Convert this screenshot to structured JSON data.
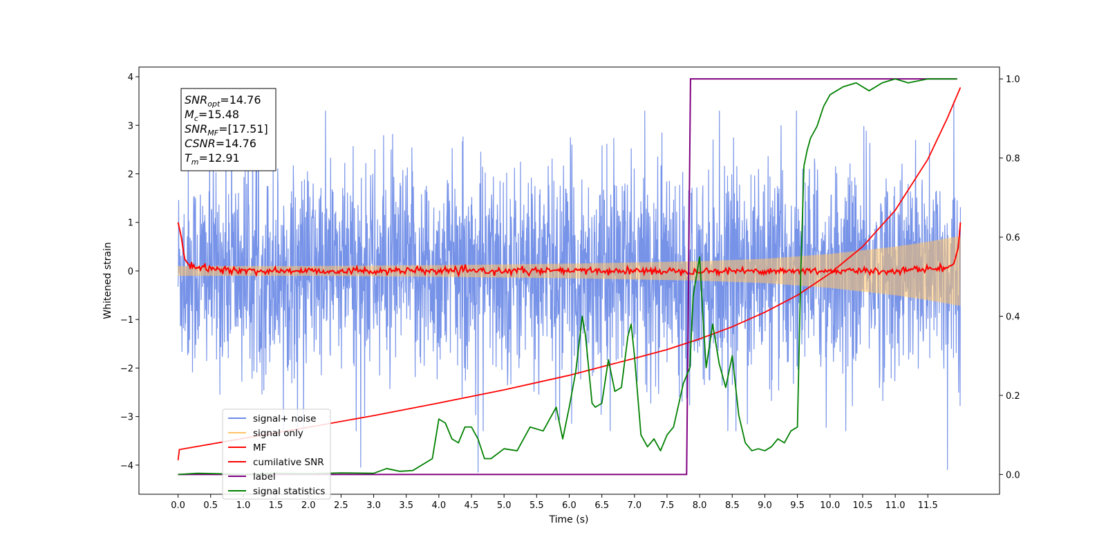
{
  "chart_data": {
    "type": "line",
    "title": "",
    "xlabel": "Time (s)",
    "ylabel": "Whitened strain",
    "xlim": [
      -0.6,
      12.6
    ],
    "ylim": [
      -4.6,
      4.2
    ],
    "y2lim": [
      -0.05,
      1.03
    ],
    "xticks": [
      0.0,
      0.5,
      1.0,
      1.5,
      2.0,
      2.5,
      3.0,
      3.5,
      4.0,
      4.5,
      5.0,
      5.5,
      6.0,
      6.5,
      7.0,
      7.5,
      8.0,
      8.5,
      9.0,
      9.5,
      10.0,
      10.5,
      11.0,
      11.5
    ],
    "xtick_labels": [
      "0.0",
      "0.5",
      "1.0",
      "1.5",
      "2.0",
      "2.5",
      "3.0",
      "3.5",
      "4.0",
      "4.5",
      "5.0",
      "5.5",
      "6.0",
      "6.5",
      "7.0",
      "7.5",
      "8.0",
      "8.5",
      "9.0",
      "9.5",
      "10.0",
      "10.5",
      "11.0",
      "11.5"
    ],
    "yticks": [
      4,
      3,
      2,
      1,
      0,
      -1,
      -2,
      -3,
      -4
    ],
    "ytick_labels": [
      "4",
      "3",
      "2",
      "1",
      "0",
      "−1",
      "−2",
      "−3",
      "−4"
    ],
    "y2ticks": [
      1.0,
      0.8,
      0.6,
      0.4,
      0.2,
      0.0
    ],
    "y2tick_labels": [
      "1.0",
      "0.8",
      "0.6",
      "0.4",
      "0.2",
      "0.0"
    ],
    "grid": false,
    "legend_position": "lower-left",
    "legend": [
      {
        "name": "signal+ noise",
        "color": "#6b8ae6"
      },
      {
        "name": "signal only",
        "color": "#ffc266"
      },
      {
        "name": "MF",
        "color": "#ff0000"
      },
      {
        "name": "cumilative SNR",
        "color": "#ff0000"
      },
      {
        "name": "label",
        "color": "#800080"
      },
      {
        "name": "signal statistics",
        "color": "#008000"
      }
    ],
    "annotation": [
      {
        "base": "SNR",
        "sub": "opt",
        "value": "=14.76"
      },
      {
        "base": "M",
        "sub": "c",
        "value": "=15.48"
      },
      {
        "base": "SNR",
        "sub": "MF",
        "value": "=[17.51]"
      },
      {
        "base": "CSNR",
        "sub": "",
        "value": "=14.76"
      },
      {
        "base": "T",
        "sub": "m",
        "value": "=12.91"
      }
    ],
    "series": [
      {
        "name": "signal+ noise",
        "axis": "left",
        "note_style": "dense noise band",
        "x_range": [
          0.0,
          12.0
        ],
        "envelope_y": [
          -2.0,
          2.0
        ],
        "spikes_y": [
          [
            0.82,
            3.75
          ],
          [
            2.8,
            -4.05
          ],
          [
            4.6,
            -4.15
          ],
          [
            11.8,
            -4.1
          ],
          [
            11.9,
            3.5
          ]
        ]
      },
      {
        "name": "signal only",
        "axis": "left",
        "x": [
          0.0,
          2.0,
          4.0,
          6.0,
          8.0,
          9.0,
          10.0,
          11.0,
          11.5,
          12.0
        ],
        "amplitude": [
          0.1,
          0.1,
          0.12,
          0.15,
          0.2,
          0.25,
          0.35,
          0.5,
          0.6,
          0.72
        ]
      },
      {
        "name": "MF",
        "axis": "left",
        "x": [
          0.0,
          0.05,
          0.1,
          0.15,
          0.2,
          0.3,
          0.5,
          1.0,
          2.0,
          3.0,
          4.0,
          5.0,
          6.0,
          7.0,
          8.0,
          9.0,
          10.0,
          11.0,
          11.5,
          11.8,
          11.9,
          11.97,
          12.0
        ],
        "y": [
          1.0,
          0.7,
          0.25,
          0.15,
          0.1,
          0.05,
          0.05,
          0.0,
          0.0,
          0.0,
          0.0,
          0.0,
          0.0,
          0.0,
          0.0,
          0.0,
          0.0,
          0.0,
          0.05,
          0.05,
          0.15,
          0.5,
          1.0
        ]
      },
      {
        "name": "cumilative SNR",
        "axis": "left",
        "x": [
          0.0,
          0.02,
          1.0,
          2.0,
          3.0,
          4.0,
          5.0,
          6.0,
          7.0,
          7.5,
          8.0,
          8.5,
          9.0,
          9.5,
          10.0,
          10.5,
          11.0,
          11.5,
          11.8,
          12.0
        ],
        "y": [
          -3.9,
          -3.68,
          -3.45,
          -3.22,
          -2.98,
          -2.72,
          -2.45,
          -2.15,
          -1.8,
          -1.62,
          -1.4,
          -1.15,
          -0.85,
          -0.5,
          -0.05,
          0.5,
          1.25,
          2.3,
          3.15,
          3.78
        ]
      },
      {
        "name": "label",
        "axis": "right",
        "x": [
          0.0,
          7.8,
          7.86,
          11.95
        ],
        "y": [
          0.0,
          0.0,
          1.0,
          1.0
        ]
      },
      {
        "name": "signal statistics",
        "axis": "right",
        "x": [
          0.0,
          0.3,
          0.6,
          1.0,
          1.5,
          2.0,
          2.5,
          3.0,
          3.2,
          3.4,
          3.6,
          3.8,
          3.9,
          4.0,
          4.1,
          4.2,
          4.3,
          4.4,
          4.5,
          4.6,
          4.7,
          4.8,
          5.0,
          5.2,
          5.4,
          5.6,
          5.8,
          5.9,
          6.0,
          6.1,
          6.2,
          6.25,
          6.35,
          6.4,
          6.5,
          6.6,
          6.65,
          6.7,
          6.8,
          6.9,
          6.95,
          7.0,
          7.1,
          7.2,
          7.3,
          7.4,
          7.5,
          7.6,
          7.75,
          7.85,
          7.9,
          8.0,
          8.05,
          8.1,
          8.2,
          8.3,
          8.4,
          8.5,
          8.6,
          8.7,
          8.8,
          8.9,
          9.0,
          9.1,
          9.2,
          9.3,
          9.4,
          9.5,
          9.55,
          9.6,
          9.65,
          9.7,
          9.8,
          9.9,
          10.0,
          10.2,
          10.4,
          10.6,
          10.8,
          11.0,
          11.2,
          11.5,
          11.8,
          11.95
        ],
        "y": [
          0.0,
          0.003,
          0.002,
          0.0,
          0.003,
          0.002,
          0.004,
          0.003,
          0.015,
          0.008,
          0.01,
          0.03,
          0.04,
          0.14,
          0.13,
          0.09,
          0.08,
          0.12,
          0.12,
          0.09,
          0.04,
          0.04,
          0.065,
          0.06,
          0.12,
          0.11,
          0.17,
          0.09,
          0.17,
          0.26,
          0.4,
          0.35,
          0.18,
          0.17,
          0.18,
          0.29,
          0.25,
          0.21,
          0.22,
          0.35,
          0.38,
          0.3,
          0.1,
          0.07,
          0.09,
          0.06,
          0.1,
          0.12,
          0.23,
          0.27,
          0.45,
          0.55,
          0.4,
          0.27,
          0.38,
          0.28,
          0.22,
          0.3,
          0.15,
          0.08,
          0.06,
          0.065,
          0.06,
          0.07,
          0.09,
          0.08,
          0.11,
          0.12,
          0.5,
          0.78,
          0.82,
          0.85,
          0.88,
          0.93,
          0.96,
          0.98,
          0.99,
          0.97,
          0.99,
          1.0,
          0.99,
          1.0,
          1.0,
          1.0
        ]
      }
    ]
  }
}
